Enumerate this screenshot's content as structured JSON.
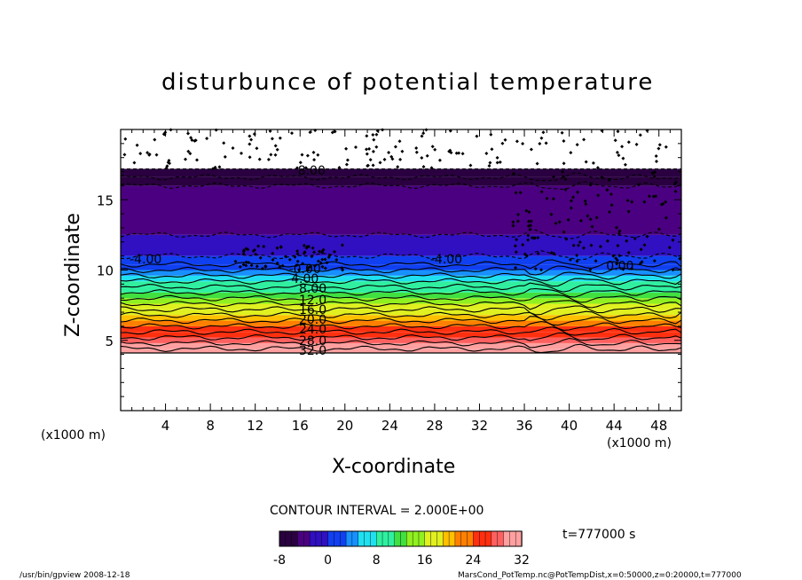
{
  "figure": {
    "title": "disturbunce of potential temperature",
    "x_unit": "(x1000 m)",
    "x_unit_right": "(x1000 m)",
    "contour_interval": "CONTOUR INTERVAL = 2.000E+00",
    "time_label": "t=777000 s",
    "footer_left": "/usr/bin/gpview  2008-12-18",
    "footer_right": "MarsCond_PotTemp.nc@PotTempDist,x=0:50000,z=0:20000,t=777000"
  },
  "chart_data": {
    "type": "heatmap",
    "title": "disturbunce of potential temperature",
    "xlabel": "X-coordinate",
    "ylabel": "Z-coordinate",
    "xlim": [
      0,
      50
    ],
    "ylim": [
      0,
      20
    ],
    "x_ticks": [
      4,
      8,
      12,
      16,
      20,
      24,
      28,
      32,
      36,
      40,
      44,
      48
    ],
    "y_ticks": [
      5,
      10,
      15
    ],
    "contour_labels": [
      {
        "text": "8.00",
        "x": 15.8,
        "z": 17.1
      },
      {
        "text": "-4.00",
        "x": 0.8,
        "z": 10.8
      },
      {
        "text": "-4.00",
        "x": 27.6,
        "z": 10.8
      },
      {
        "text": "-0.00",
        "x": 15.0,
        "z": 10.1
      },
      {
        "text": "0.00",
        "x": 43.3,
        "z": 10.3
      },
      {
        "text": "4.00",
        "x": 15.2,
        "z": 9.4
      },
      {
        "text": "8.00",
        "x": 15.9,
        "z": 8.7
      },
      {
        "text": "12.0",
        "x": 15.9,
        "z": 7.9
      },
      {
        "text": "16.0",
        "x": 15.9,
        "z": 7.2
      },
      {
        "text": "20.0",
        "x": 15.9,
        "z": 6.5
      },
      {
        "text": "24.0",
        "x": 15.9,
        "z": 5.8
      },
      {
        "text": "28.0",
        "x": 15.9,
        "z": 5.0
      },
      {
        "text": "32.0",
        "x": 15.9,
        "z": 4.3
      }
    ],
    "colorbar": {
      "min": -8,
      "max": 32,
      "ticks": [
        "-8",
        "0",
        "8",
        "16",
        "24",
        "32"
      ],
      "colors": [
        "#2a0040",
        "#4a0080",
        "#3010c0",
        "#1040f0",
        "#1890ff",
        "#20e0f0",
        "#30f0a0",
        "#40e040",
        "#90f020",
        "#e0f020",
        "#ffc000",
        "#ff8000",
        "#ff3010",
        "#ff6060",
        "#ffa0a0"
      ]
    }
  }
}
